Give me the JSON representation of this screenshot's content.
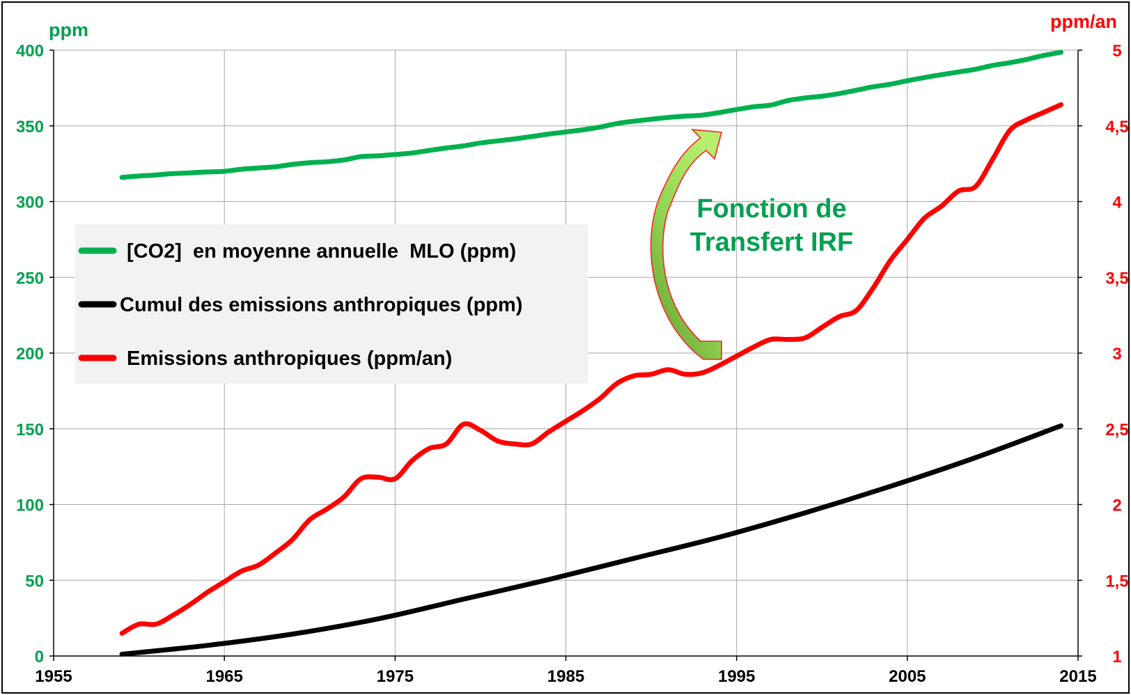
{
  "chart_data": {
    "type": "line",
    "title": "",
    "xlabel": "",
    "ylabel_left": "ppm",
    "ylabel_right": "ppm/an",
    "xlim": [
      1955,
      2015
    ],
    "ylim_left": [
      0,
      400
    ],
    "ylim_right": [
      1,
      5
    ],
    "x_ticks": [
      "1955",
      "1965",
      "1975",
      "1985",
      "1995",
      "2005",
      "2015"
    ],
    "y_left_ticks": [
      "0",
      "50",
      "100",
      "150",
      "200",
      "250",
      "300",
      "350",
      "400"
    ],
    "y_right_ticks": [
      "1",
      "1,5",
      "2",
      "2,5",
      "3",
      "3,5",
      "4",
      "4,5",
      "5"
    ],
    "grid": true,
    "legend_position": "left-center",
    "annotation": {
      "line1": "Fonction de",
      "line2": "Transfert IRF"
    },
    "colors": {
      "co2": "#00b050",
      "cumul": "#000000",
      "emissions": "#ff0000",
      "left_axis": "#00a050",
      "right_axis": "#ff0000"
    },
    "series": [
      {
        "name": "[CO2]  en moyenne annuelle  MLO (ppm)",
        "axis": "left",
        "x": [
          1959,
          1960,
          1961,
          1962,
          1963,
          1964,
          1965,
          1966,
          1967,
          1968,
          1969,
          1970,
          1971,
          1972,
          1973,
          1974,
          1975,
          1976,
          1977,
          1978,
          1979,
          1980,
          1981,
          1982,
          1983,
          1984,
          1985,
          1986,
          1987,
          1988,
          1989,
          1990,
          1991,
          1992,
          1993,
          1994,
          1995,
          1996,
          1997,
          1998,
          1999,
          2000,
          2001,
          2002,
          2003,
          2004,
          2005,
          2006,
          2007,
          2008,
          2009,
          2010,
          2011,
          2012,
          2013,
          2014
        ],
        "values": [
          316.0,
          316.9,
          317.6,
          318.5,
          319.0,
          319.6,
          320.0,
          321.4,
          322.2,
          323.0,
          324.6,
          325.7,
          326.3,
          327.5,
          329.7,
          330.2,
          331.1,
          332.1,
          333.8,
          335.4,
          336.8,
          338.7,
          340.1,
          341.4,
          343.0,
          344.6,
          346.0,
          347.4,
          349.2,
          351.6,
          353.1,
          354.4,
          355.6,
          356.4,
          357.1,
          358.8,
          360.8,
          362.6,
          363.7,
          366.7,
          368.4,
          369.6,
          371.3,
          373.5,
          375.8,
          377.5,
          379.8,
          381.9,
          383.8,
          385.6,
          387.4,
          389.9,
          391.7,
          393.9,
          396.5,
          398.6
        ]
      },
      {
        "name": "Cumul des emissions anthropiques (ppm)",
        "axis": "left",
        "x": [
          1959,
          1964,
          1969,
          1974,
          1979,
          1984,
          1989,
          1994,
          1999,
          2004,
          2009,
          2014
        ],
        "values": [
          1.2,
          7.0,
          14.5,
          24.5,
          37.5,
          50.5,
          64.5,
          78.5,
          94.5,
          112.0,
          131.0,
          152.0
        ]
      },
      {
        "name": "Emissions anthropiques (ppm/an)",
        "axis": "right",
        "x": [
          1959,
          1960,
          1961,
          1962,
          1963,
          1964,
          1965,
          1966,
          1967,
          1968,
          1969,
          1970,
          1971,
          1972,
          1973,
          1974,
          1975,
          1976,
          1977,
          1978,
          1979,
          1980,
          1981,
          1982,
          1983,
          1984,
          1985,
          1986,
          1987,
          1988,
          1989,
          1990,
          1991,
          1992,
          1993,
          1994,
          1995,
          1996,
          1997,
          1998,
          1999,
          2000,
          2001,
          2002,
          2003,
          2004,
          2005,
          2006,
          2007,
          2008,
          2009,
          2010,
          2011,
          2012,
          2013,
          2014
        ],
        "values": [
          1.15,
          1.21,
          1.21,
          1.27,
          1.34,
          1.42,
          1.49,
          1.56,
          1.6,
          1.68,
          1.77,
          1.9,
          1.97,
          2.05,
          2.17,
          2.18,
          2.17,
          2.29,
          2.37,
          2.4,
          2.53,
          2.49,
          2.42,
          2.4,
          2.4,
          2.48,
          2.55,
          2.62,
          2.7,
          2.8,
          2.85,
          2.86,
          2.89,
          2.86,
          2.87,
          2.92,
          2.98,
          3.04,
          3.09,
          3.09,
          3.1,
          3.17,
          3.24,
          3.28,
          3.43,
          3.61,
          3.75,
          3.89,
          3.97,
          4.07,
          4.1,
          4.28,
          4.47,
          4.54,
          4.59,
          4.64
        ]
      }
    ]
  }
}
